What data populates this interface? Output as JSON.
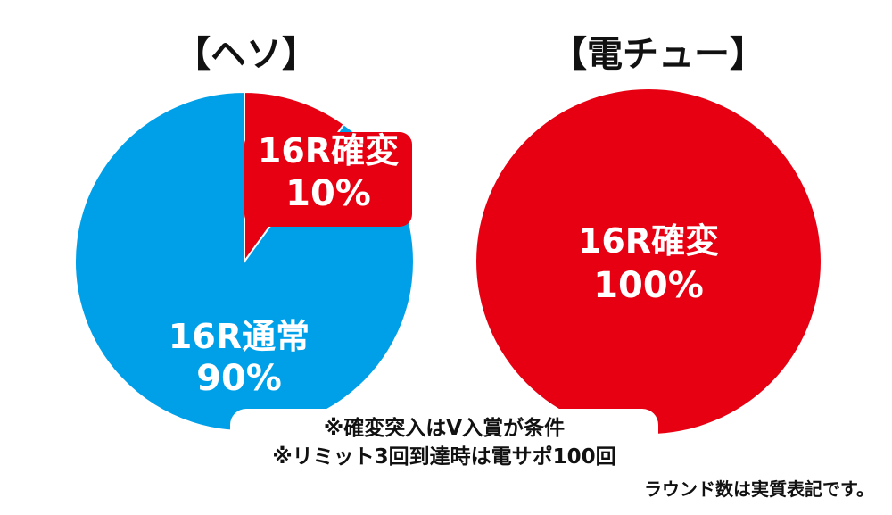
{
  "charts": {
    "left_title": "【ヘソ】",
    "right_title": "【電チュー】"
  },
  "chart_data": [
    {
      "type": "pie",
      "title": "【ヘソ】",
      "slices": [
        {
          "label": "16R確変",
          "percent_label": "10%",
          "value": 10,
          "color": "#e60012"
        },
        {
          "label": "16R通常",
          "percent_label": "90%",
          "value": 90,
          "color": "#00a0e9"
        }
      ]
    },
    {
      "type": "pie",
      "title": "【電チュー】",
      "slices": [
        {
          "label": "16R確変",
          "percent_label": "100%",
          "value": 100,
          "color": "#e60012"
        }
      ]
    }
  ],
  "notes": {
    "line1": "※確変突入はV入賞が条件",
    "line2": "※リミット3回到達時は電サポ100回"
  },
  "footnote": "ラウンド数は実質表記です。"
}
